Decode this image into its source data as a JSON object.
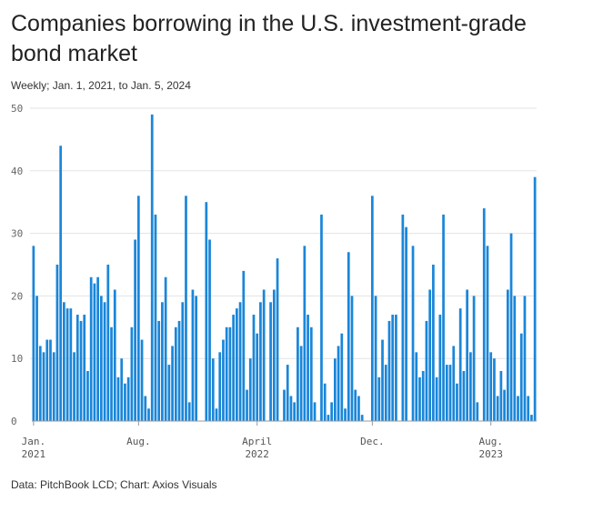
{
  "title": "Companies borrowing in the U.S. investment-grade bond market",
  "subtitle": "Weekly; Jan. 1, 2021, to Jan. 5, 2024",
  "source": "Data: PitchBook LCD; Chart: Axios Visuals",
  "colors": {
    "bar": "#1a86d9",
    "grid": "#e3e3e3",
    "axis": "#999999"
  },
  "chart_data": {
    "type": "bar",
    "title": "Companies borrowing in the U.S. investment-grade bond market",
    "xlabel": "",
    "ylabel": "",
    "ylim": [
      0,
      50
    ],
    "yticks": [
      0,
      10,
      20,
      30,
      40,
      50
    ],
    "xtick_labels": [
      {
        "index": 0,
        "lines": [
          "Jan.",
          "2021"
        ]
      },
      {
        "index": 31,
        "lines": [
          "Aug."
        ]
      },
      {
        "index": 66,
        "lines": [
          "April",
          "2022"
        ]
      },
      {
        "index": 100,
        "lines": [
          "Dec."
        ]
      },
      {
        "index": 135,
        "lines": [
          "Aug.",
          "2023"
        ]
      }
    ],
    "values": [
      28,
      20,
      12,
      11,
      13,
      13,
      11,
      25,
      44,
      19,
      18,
      18,
      11,
      17,
      16,
      17,
      8,
      23,
      22,
      23,
      20,
      19,
      25,
      15,
      21,
      7,
      10,
      6,
      7,
      15,
      29,
      36,
      13,
      4,
      2,
      49,
      33,
      16,
      19,
      23,
      9,
      12,
      15,
      16,
      19,
      36,
      3,
      21,
      20,
      0,
      0,
      35,
      29,
      10,
      2,
      11,
      13,
      15,
      15,
      17,
      18,
      19,
      24,
      5,
      10,
      17,
      14,
      19,
      21,
      0,
      19,
      21,
      26,
      0,
      5,
      9,
      4,
      3,
      15,
      12,
      28,
      17,
      15,
      3,
      0,
      33,
      6,
      1,
      3,
      10,
      12,
      14,
      2,
      27,
      20,
      5,
      4,
      1,
      0,
      0,
      36,
      20,
      7,
      13,
      9,
      16,
      17,
      17,
      0,
      33,
      31,
      0,
      28,
      11,
      7,
      8,
      16,
      21,
      25,
      7,
      17,
      33,
      9,
      9,
      12,
      6,
      18,
      8,
      21,
      11,
      20,
      3,
      0,
      34,
      28,
      11,
      10,
      4,
      8,
      5,
      21,
      30,
      20,
      4,
      14,
      20,
      4,
      1,
      39
    ]
  }
}
